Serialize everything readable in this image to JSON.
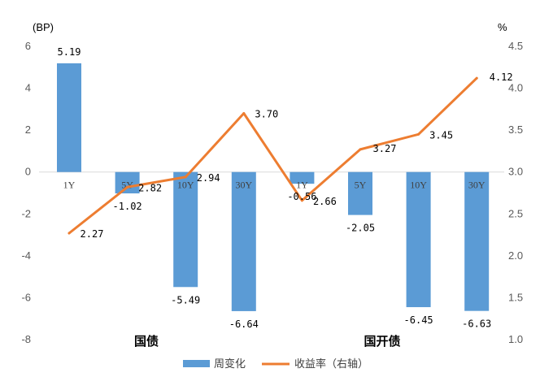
{
  "chart_data": {
    "type": "bar+line",
    "left_axis_unit": "(BP)",
    "right_axis_unit": "%",
    "y_left": {
      "min": -8,
      "max": 6,
      "step": 2,
      "ticks": [
        "6",
        "4",
        "2",
        "0",
        "-2",
        "-4",
        "-6",
        "-8"
      ]
    },
    "y_right": {
      "min": 1.0,
      "max": 4.5,
      "step": 0.5,
      "ticks": [
        "4.5",
        "4.0",
        "3.5",
        "3.0",
        "2.5",
        "2.0",
        "1.5",
        "1.0"
      ]
    },
    "categories": [
      "1Y",
      "5Y",
      "10Y",
      "30Y",
      "1Y",
      "5Y",
      "10Y",
      "30Y"
    ],
    "groups": [
      {
        "label": "国债"
      },
      {
        "label": "国开债"
      }
    ],
    "series": [
      {
        "name": "周变化",
        "axis": "left",
        "type": "bar",
        "color": "#5b9bd5",
        "values": [
          5.19,
          -1.02,
          -5.49,
          -6.64,
          -0.56,
          -2.05,
          -6.45,
          -6.63
        ],
        "labels": [
          "5.19",
          "-1.02",
          "-5.49",
          "-6.64",
          "-0.56",
          "-2.05",
          "-6.45",
          "-6.63"
        ]
      },
      {
        "name": "收益率（右轴）",
        "axis": "right",
        "type": "line",
        "color": "#ed7d31",
        "values": [
          2.27,
          2.82,
          2.94,
          3.7,
          2.66,
          3.27,
          3.45,
          4.12
        ],
        "labels": [
          "2.27",
          "2.82",
          "2.94",
          "3.70",
          "2.66",
          "3.27",
          "3.45",
          "4.12"
        ]
      }
    ]
  }
}
